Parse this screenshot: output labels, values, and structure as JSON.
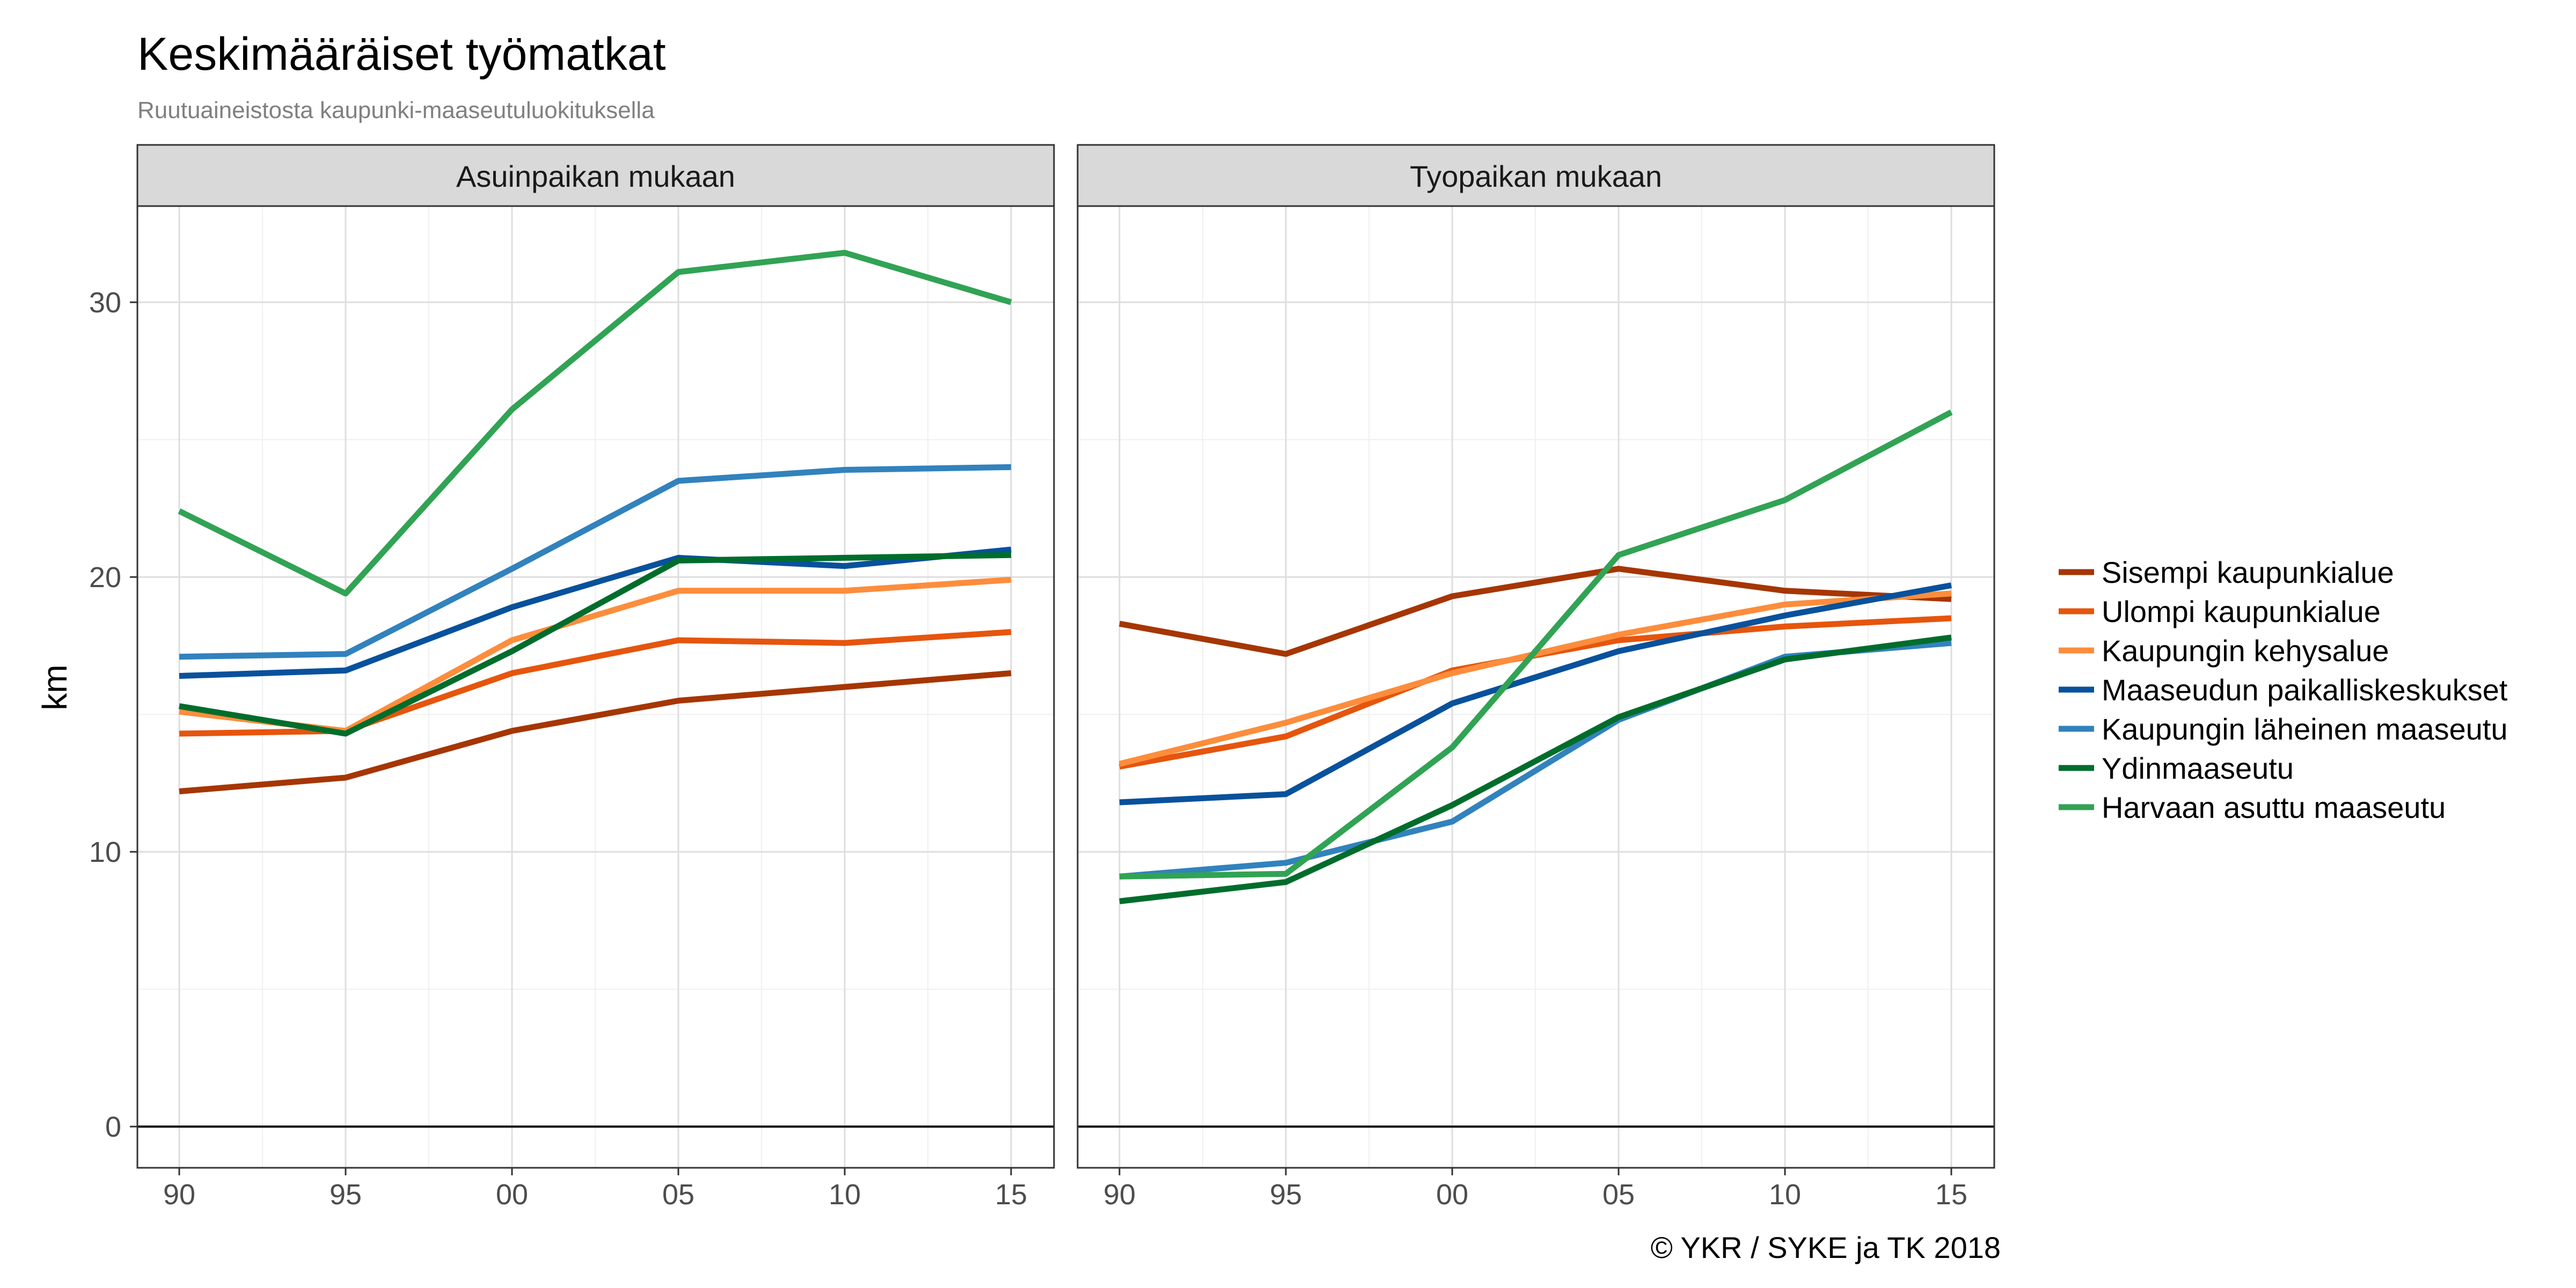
{
  "title": "Keskimääräiset työmatkat",
  "subtitle": "Ruutuaineistosta kaupunki-maaseutuluokituksella",
  "caption": "© YKR / SYKE ja TK 2018",
  "chart_data": {
    "type": "line",
    "ylabel": "km",
    "ylim": [
      -1.5,
      33.5
    ],
    "y_ticks": [
      0,
      10,
      20,
      30
    ],
    "y_tick_labels": [
      "0",
      "10",
      "20",
      "30"
    ],
    "x": [
      1990,
      1995,
      2000,
      2005,
      2010,
      2015
    ],
    "x_tick_labels": [
      "90",
      "95",
      "00",
      "05",
      "10",
      "15"
    ],
    "legend_position": "right",
    "grid": true,
    "series_colors": [
      "#a63603",
      "#e6550d",
      "#fd8d3c",
      "#08519c",
      "#3182bd",
      "#006d2c",
      "#31a354"
    ],
    "legend_labels": [
      "Sisempi kaupunkialue",
      "Ulompi kaupunkialue",
      "Kaupungin kehysalue",
      "Maaseudun paikalliskeskukset",
      "Kaupungin läheinen maaseutu",
      "Ydinmaaseutu",
      "Harvaan asuttu maaseutu"
    ],
    "panels": [
      {
        "label": "Asuinpaikan mukaan",
        "series": [
          {
            "name": "Sisempi kaupunkialue",
            "values": [
              12.2,
              12.7,
              14.4,
              15.5,
              16.0,
              16.5
            ]
          },
          {
            "name": "Ulompi kaupunkialue",
            "values": [
              14.3,
              14.4,
              16.5,
              17.7,
              17.6,
              18.0
            ]
          },
          {
            "name": "Kaupungin kehysalue",
            "values": [
              15.1,
              14.4,
              17.7,
              19.5,
              19.5,
              19.9
            ]
          },
          {
            "name": "Maaseudun paikalliskeskukset",
            "values": [
              16.4,
              16.6,
              18.9,
              20.7,
              20.4,
              21.0
            ]
          },
          {
            "name": "Kaupungin läheinen maaseutu",
            "values": [
              17.1,
              17.2,
              20.3,
              23.5,
              23.9,
              24.0
            ]
          },
          {
            "name": "Ydinmaaseutu",
            "values": [
              15.3,
              14.3,
              17.3,
              20.6,
              20.7,
              20.8
            ]
          },
          {
            "name": "Harvaan asuttu maaseutu",
            "values": [
              22.4,
              19.4,
              26.1,
              31.1,
              31.8,
              30.0
            ]
          }
        ]
      },
      {
        "label": "Tyopaikan mukaan",
        "series": [
          {
            "name": "Sisempi kaupunkialue",
            "values": [
              18.3,
              17.2,
              19.3,
              20.3,
              19.5,
              19.2
            ]
          },
          {
            "name": "Ulompi kaupunkialue",
            "values": [
              13.1,
              14.2,
              16.6,
              17.7,
              18.2,
              18.5
            ]
          },
          {
            "name": "Kaupungin kehysalue",
            "values": [
              13.2,
              14.7,
              16.5,
              17.9,
              19.0,
              19.4
            ]
          },
          {
            "name": "Maaseudun paikalliskeskukset",
            "values": [
              11.8,
              12.1,
              15.4,
              17.3,
              18.6,
              19.7
            ]
          },
          {
            "name": "Kaupungin läheinen maaseutu",
            "values": [
              9.1,
              9.6,
              11.1,
              14.8,
              17.1,
              17.6
            ]
          },
          {
            "name": "Ydinmaaseutu",
            "values": [
              8.2,
              8.9,
              11.7,
              14.9,
              17.0,
              17.8
            ]
          },
          {
            "name": "Harvaan asuttu maaseutu",
            "values": [
              9.1,
              9.2,
              13.8,
              20.8,
              22.8,
              26.0
            ]
          }
        ]
      }
    ]
  }
}
